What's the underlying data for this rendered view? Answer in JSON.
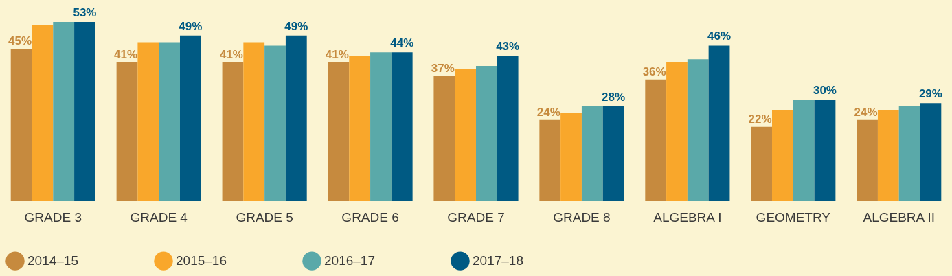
{
  "chart_data": {
    "type": "bar",
    "categories": [
      "GRADE 3",
      "GRADE 4",
      "GRADE 5",
      "GRADE 6",
      "GRADE 7",
      "GRADE 8",
      "ALGEBRA I",
      "GEOMETRY",
      "ALGEBRA II"
    ],
    "legend": "bottom",
    "series": [
      {
        "name": "2014–15",
        "color": "#c68a3e",
        "values": [
          45,
          41,
          41,
          41,
          37,
          24,
          36,
          22,
          24
        ],
        "value_labels": [
          "45%",
          "41%",
          "41%",
          "41%",
          "37%",
          "24%",
          "36%",
          "22%",
          "24%"
        ]
      },
      {
        "name": "2015–16",
        "color": "#f9a72b",
        "values": [
          52,
          47,
          47,
          43,
          39,
          26,
          41,
          27,
          27
        ]
      },
      {
        "name": "2016–17",
        "color": "#5aa9a9",
        "values": [
          53,
          47,
          46,
          44,
          40,
          28,
          42,
          30,
          28
        ]
      },
      {
        "name": "2017–18",
        "color": "#005a83",
        "values": [
          53,
          49,
          49,
          44,
          43,
          28,
          46,
          30,
          29
        ],
        "value_labels": [
          "53%",
          "49%",
          "49%",
          "44%",
          "43%",
          "28%",
          "46%",
          "30%",
          "29%"
        ]
      }
    ]
  }
}
